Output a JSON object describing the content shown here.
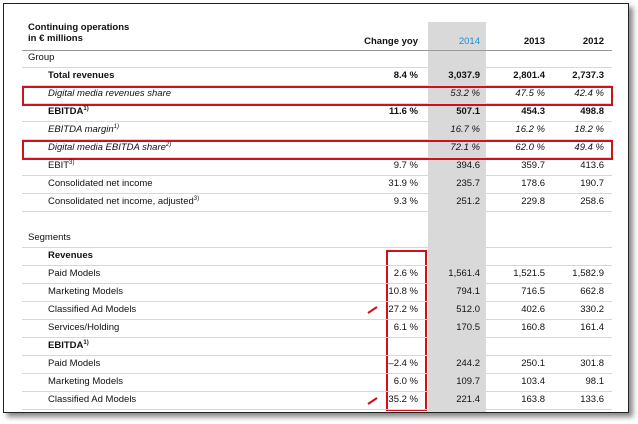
{
  "header": {
    "line1": "Continuing operations",
    "line2": "in € millions",
    "columns": [
      "Change yoy",
      "2014",
      "2013",
      "2012"
    ]
  },
  "rows": [
    {
      "label": "Group",
      "kind": "section"
    },
    {
      "label": "Total revenues",
      "style": "bold",
      "values": [
        "8.4 %",
        "3,037.9",
        "2,801.4",
        "2,737.3"
      ]
    },
    {
      "label": "Digital media revenues share",
      "style": "italic",
      "highlight": true,
      "values": [
        null,
        "53.2 %",
        "47.5 %",
        "42.4 %"
      ]
    },
    {
      "label": "EBITDA",
      "note": "1)",
      "style": "bold",
      "values": [
        "11.6 %",
        "507.1",
        "454.3",
        "498.8"
      ]
    },
    {
      "label": "EBITDA margin",
      "note": "1)",
      "style": "italic",
      "values": [
        null,
        "16.7 %",
        "16.2 %",
        "18.2 %"
      ]
    },
    {
      "label": "Digital media EBITDA share",
      "note": "2)",
      "style": "italic",
      "highlight": true,
      "values": [
        null,
        "72.1 %",
        "62.0 %",
        "49.4 %"
      ]
    },
    {
      "label": "EBIT",
      "note": "3)",
      "values": [
        "9.7 %",
        "394.6",
        "359.7",
        "413.6"
      ]
    },
    {
      "label": "Consolidated net income",
      "values": [
        "31.9 %",
        "235.7",
        "178.6",
        "190.7"
      ]
    },
    {
      "label": "Consolidated net income, adjusted",
      "note": "3)",
      "values": [
        "9.3 %",
        "251.2",
        "229.8",
        "258.6"
      ]
    },
    {
      "label": "Segments",
      "kind": "section"
    },
    {
      "label": "Revenues",
      "style": "bold"
    },
    {
      "label": "Paid Models",
      "values": [
        "2.6 %",
        "1,561.4",
        "1,521.5",
        "1,582.9"
      ]
    },
    {
      "label": "Marketing Models",
      "values": [
        "10.8 %",
        "794.1",
        "716.5",
        "662.8"
      ]
    },
    {
      "label": "Classified Ad Models",
      "values": [
        "27.2 %",
        "512.0",
        "402.6",
        "330.2"
      ]
    },
    {
      "label": "Services/Holding",
      "values": [
        "6.1 %",
        "170.5",
        "160.8",
        "161.4"
      ]
    },
    {
      "label": "EBITDA",
      "note": "1)",
      "style": "bold"
    },
    {
      "label": "Paid Models",
      "values": [
        "–2.4 %",
        "244.2",
        "250.1",
        "301.8"
      ]
    },
    {
      "label": "Marketing Models",
      "values": [
        "6.0 %",
        "109.7",
        "103.4",
        "98.1"
      ]
    },
    {
      "label": "Classified Ad Models",
      "values": [
        "35.2 %",
        "221.4",
        "163.8",
        "133.6"
      ]
    }
  ]
}
